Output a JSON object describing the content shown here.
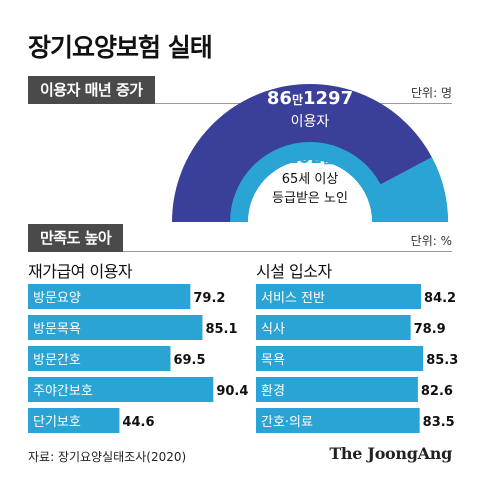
{
  "title": "장기요양보험 실태",
  "section1": {
    "label": "이용자 매년 증가",
    "unit": "단위: 명"
  },
  "section2": {
    "label": "만족도 높아",
    "unit": "단위: %"
  },
  "source": "자료: 장기요양실태조사(2020)",
  "logo": "The JoongAng",
  "colors": {
    "dark_blue": "#3a3f9a",
    "light_blue": "#2aa3d5",
    "tag_bg": "#4a4a4a"
  },
  "chart_data": [
    {
      "type": "gauge",
      "outer": {
        "value": 861297,
        "label_num": "86",
        "label_unit": "만",
        "label_rest": "1297",
        "label": "이용자"
      },
      "inner": {
        "value": 1020000,
        "label_num": "102",
        "label_unit": "만",
        "label_line1": "65세 이상",
        "label_line2": "등급받은 노인"
      }
    },
    {
      "type": "bar",
      "title": "재가급여 이용자",
      "categories": [
        "방문요양",
        "방문목욕",
        "방문간호",
        "주야간보호",
        "단기보호"
      ],
      "values": [
        79.2,
        85.1,
        69.5,
        90.4,
        44.6
      ],
      "value_labels": [
        "79.2",
        "85.1",
        "69.5",
        "90.4",
        "44.6"
      ]
    },
    {
      "type": "bar",
      "title": "시설 입소자",
      "categories": [
        "서비스 전반",
        "식사",
        "목욕",
        "환경",
        "간호·의료"
      ],
      "values": [
        84.2,
        78.9,
        85.3,
        82.6,
        83.5
      ],
      "value_labels": [
        "84.2",
        "78.9",
        "85.3",
        "82.6",
        "83.5"
      ]
    }
  ]
}
